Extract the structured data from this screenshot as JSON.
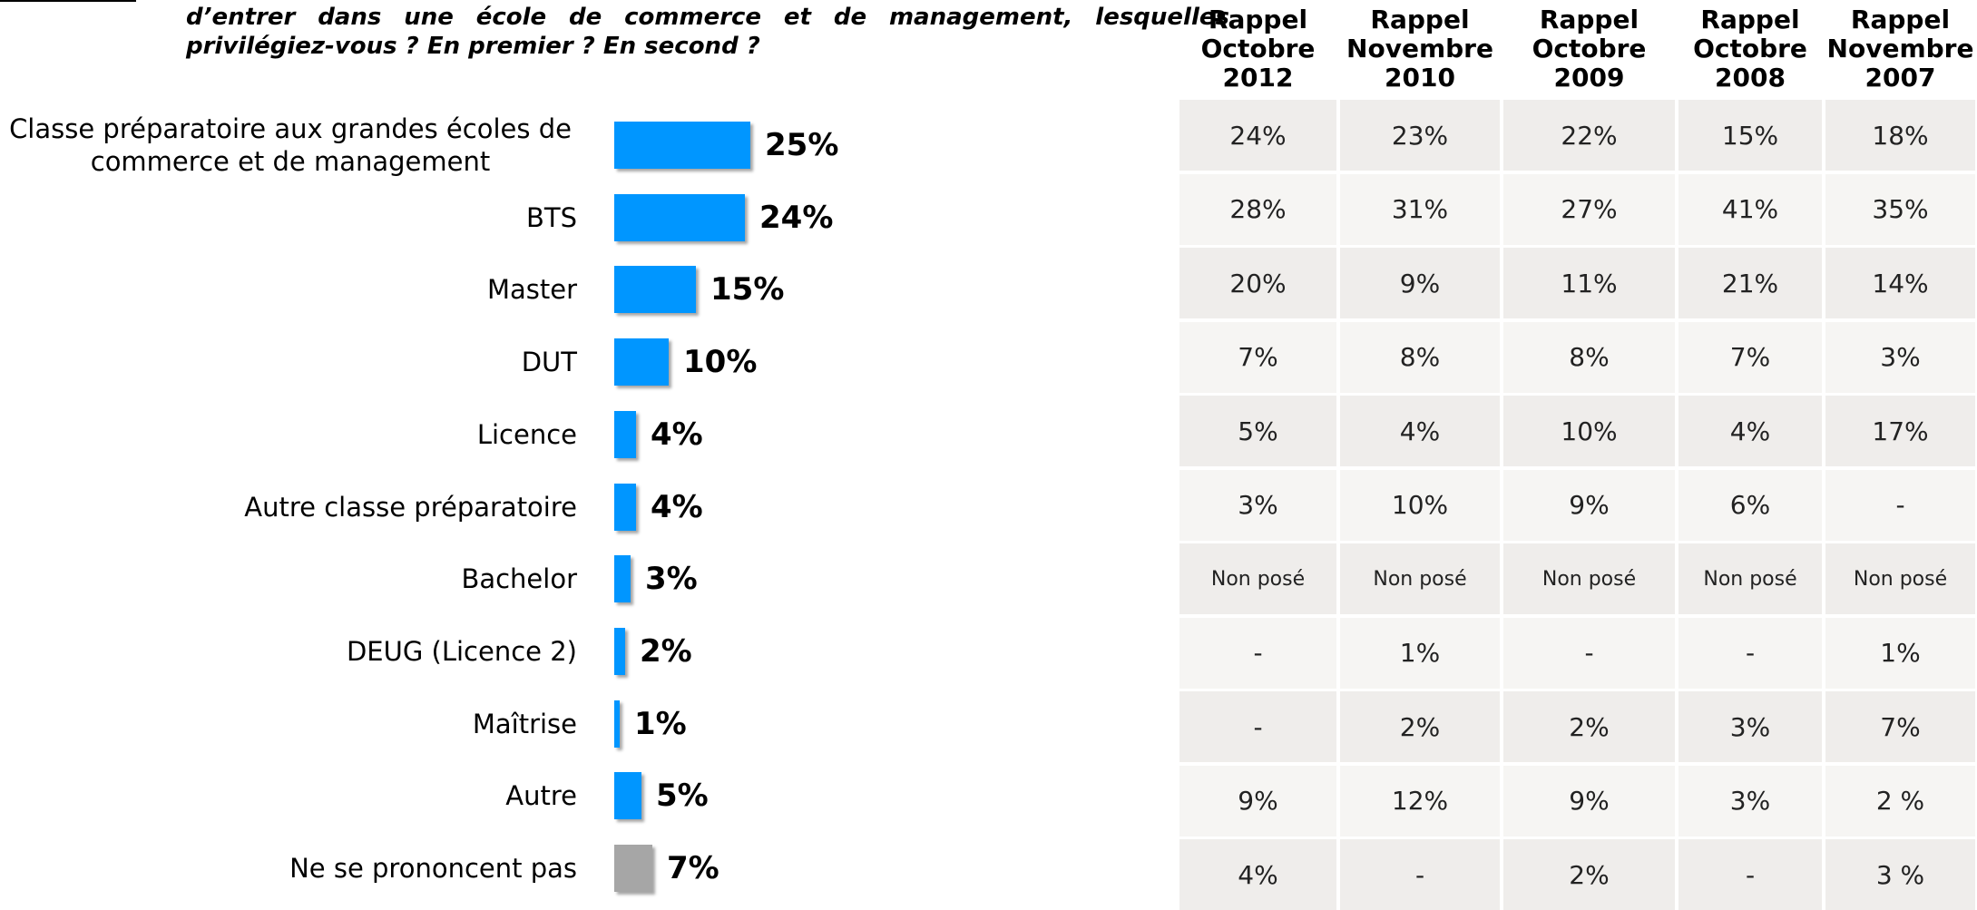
{
  "chart_data": {
    "type": "bar",
    "orientation": "horizontal",
    "title": [
      "d’entrer dans une école de commerce et de management, lesquelles",
      "privilégiez-vous ? En premier ? En second ?"
    ],
    "categories": [
      "Classe préparatoire aux grandes écoles de commerce et de management",
      "BTS",
      "Master",
      "DUT",
      "Licence",
      "Autre classe préparatoire",
      "Bachelor",
      "DEUG (Licence 2)",
      "Maîtrise",
      "Autre",
      "Ne se prononcent pas"
    ],
    "values": [
      25,
      24,
      15,
      10,
      4,
      4,
      3,
      2,
      1,
      5,
      7
    ],
    "value_labels": [
      "25%",
      "24%",
      "15%",
      "10%",
      "4%",
      "4%",
      "3%",
      "2%",
      "1%",
      "5%",
      "7%"
    ],
    "colors": [
      "#0096ff",
      "#0096ff",
      "#0096ff",
      "#0096ff",
      "#0096ff",
      "#0096ff",
      "#0096ff",
      "#0096ff",
      "#0096ff",
      "#0096ff",
      "#a6a6a6"
    ]
  },
  "table": {
    "header": [
      "Rappel\nOctobre\n2012",
      "Rappel\nNovembre\n2010",
      "Rappel\nOctobre\n2009",
      "Rappel\nOctobre\n2008",
      "Rappel\nNovembre\n2007"
    ],
    "rows": [
      [
        "24%",
        "23%",
        "22%",
        "15%",
        "18%"
      ],
      [
        "28%",
        "31%",
        "27%",
        "41%",
        "35%"
      ],
      [
        "20%",
        "9%",
        "11%",
        "21%",
        "14%"
      ],
      [
        "7%",
        "8%",
        "8%",
        "7%",
        "3%"
      ],
      [
        "5%",
        "4%",
        "10%",
        "4%",
        "17%"
      ],
      [
        "3%",
        "10%",
        "9%",
        "6%",
        "-"
      ],
      [
        "Non posé",
        "Non posé",
        "Non posé",
        "Non posé",
        "Non posé"
      ],
      [
        "-",
        "1%",
        "-",
        "-",
        "1%"
      ],
      [
        "-",
        "2%",
        "2%",
        "3%",
        "7%"
      ],
      [
        "9%",
        "12%",
        "9%",
        "3%",
        "2 %"
      ],
      [
        "4%",
        "-",
        "2%",
        "-",
        "3 %"
      ]
    ]
  }
}
